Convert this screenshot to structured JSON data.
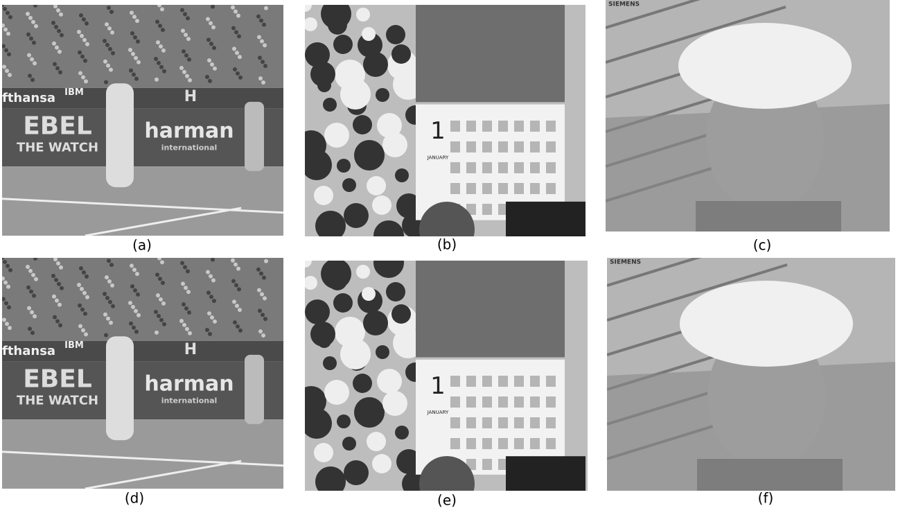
{
  "panels": [
    {
      "caption": "(a)",
      "texts": [
        "fthansa",
        "IBM",
        "EBEL",
        "THE WATCH",
        "harman",
        "international",
        "H"
      ]
    },
    {
      "caption": "(b)",
      "texts": [
        "1",
        "JANUARY"
      ]
    },
    {
      "caption": "(c)",
      "texts": [
        "SIEMENS"
      ]
    },
    {
      "caption": "(d)",
      "texts": [
        "fthansa",
        "IBM",
        "EBEL",
        "THE WATCH",
        "harman",
        "international",
        "H"
      ]
    },
    {
      "caption": "(e)",
      "texts": [
        "1",
        "JANUARY"
      ]
    },
    {
      "caption": "(f)",
      "texts": [
        "SIEMENS"
      ]
    }
  ]
}
